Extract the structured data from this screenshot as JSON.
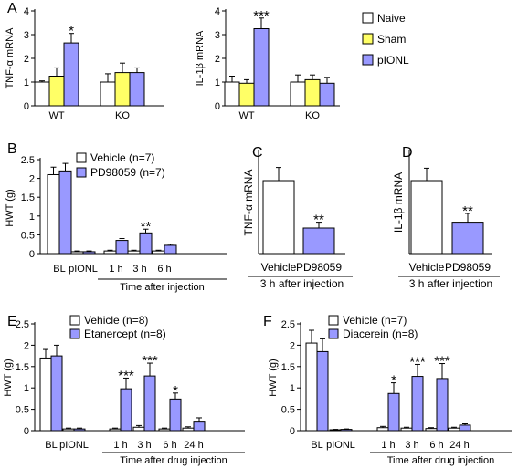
{
  "colors": {
    "naive": "#ffffff",
    "sham": "#ffff66",
    "pionl": "#9999ff",
    "vehicle": "#ffffff",
    "drug": "#9999ff",
    "stroke": "#000000"
  },
  "chart_data": [
    {
      "panel": "A",
      "type": "bar",
      "ylabel": "TNF-α mRNA",
      "ylim": [
        0,
        4
      ],
      "yticks": [
        "0",
        "1",
        "2",
        "3",
        "4"
      ],
      "groups": [
        "WT",
        "KO"
      ],
      "series": [
        {
          "name": "Naive",
          "values": [
            1.0,
            1.0
          ],
          "errors": [
            0.05,
            0.35
          ]
        },
        {
          "name": "Sham",
          "values": [
            1.25,
            1.4
          ],
          "errors": [
            0.35,
            0.4
          ]
        },
        {
          "name": "pIONL",
          "values": [
            2.65,
            1.4
          ],
          "errors": [
            0.4,
            0.2
          ]
        }
      ],
      "annotations": [
        {
          "group": "WT",
          "series": "pIONL",
          "text": "*"
        }
      ]
    },
    {
      "panel": "",
      "type": "bar",
      "ylabel": "IL-1β mRNA",
      "ylim": [
        0,
        4
      ],
      "yticks": [
        "0",
        "1",
        "2",
        "3",
        "4"
      ],
      "groups": [
        "WT",
        "KO"
      ],
      "series": [
        {
          "name": "Naive",
          "values": [
            1.0,
            1.0
          ],
          "errors": [
            0.25,
            0.3
          ]
        },
        {
          "name": "Sham",
          "values": [
            0.95,
            1.1
          ],
          "errors": [
            0.15,
            0.2
          ]
        },
        {
          "name": "pIONL",
          "values": [
            3.25,
            0.95
          ],
          "errors": [
            0.45,
            0.25
          ]
        }
      ],
      "annotations": [
        {
          "group": "WT",
          "series": "pIONL",
          "text": "***"
        }
      ],
      "legend": [
        "Naive",
        "Sham",
        "pIONL"
      ]
    },
    {
      "panel": "B",
      "type": "bar",
      "ylabel": "HWT (g)",
      "ylim": [
        0,
        2.5
      ],
      "yticks": [
        "0",
        "0.5",
        "1",
        "1.5",
        "2",
        "2.5"
      ],
      "groups": [
        "BL",
        "pIONL",
        "1 h",
        "3 h",
        "6 h"
      ],
      "xlabel": "Time after injection",
      "series": [
        {
          "name": "Vehicle (n=7)",
          "values": [
            2.1,
            0.05,
            0.07,
            0.07,
            0.07
          ],
          "errors": [
            0.2,
            0.02,
            0.02,
            0.02,
            0.02
          ]
        },
        {
          "name": "PD98059 (n=7)",
          "values": [
            2.2,
            0.05,
            0.35,
            0.55,
            0.22
          ],
          "errors": [
            0.2,
            0.02,
            0.05,
            0.1,
            0.03
          ]
        }
      ],
      "annotations": [
        {
          "group": "3 h",
          "series": "PD98059 (n=7)",
          "text": "**"
        }
      ]
    },
    {
      "panel": "C",
      "type": "bar",
      "ylabel": "TNF-α mRNA",
      "ylim": [
        0,
        1.4
      ],
      "yticks": [],
      "groups": [
        "Vehicle",
        "PD98059"
      ],
      "xlabel": "3 h after injection",
      "values": [
        1.0,
        0.35
      ],
      "errors": [
        0.18,
        0.08
      ],
      "annotations": [
        {
          "group": "PD98059",
          "text": "**"
        }
      ]
    },
    {
      "panel": "D",
      "type": "bar",
      "ylabel": "IL-1β mRNA",
      "ylim": [
        0,
        1.4
      ],
      "yticks": [],
      "groups": [
        "Vehicle",
        "PD98059"
      ],
      "xlabel": "3 h after injection",
      "values": [
        1.0,
        0.43
      ],
      "errors": [
        0.17,
        0.12
      ],
      "annotations": [
        {
          "group": "PD98059",
          "text": "**"
        }
      ]
    },
    {
      "panel": "E",
      "type": "bar",
      "ylabel": "HWT (g)",
      "ylim": [
        0,
        2.5
      ],
      "yticks": [
        "0",
        "0.5",
        "1",
        "1.5",
        "2",
        "2.5"
      ],
      "groups": [
        "BL",
        "pIONL",
        "1 h",
        "3 h",
        "6 h",
        "24 h"
      ],
      "xlabel": "Time after drug injection",
      "series": [
        {
          "name": "Vehicle (n=8)",
          "values": [
            1.7,
            0.04,
            0.04,
            0.08,
            0.04,
            0.06
          ],
          "errors": [
            0.2,
            0.02,
            0.02,
            0.04,
            0.02,
            0.03
          ]
        },
        {
          "name": "Etanercept (n=8)",
          "values": [
            1.75,
            0.04,
            0.98,
            1.28,
            0.74,
            0.2
          ],
          "errors": [
            0.25,
            0.02,
            0.25,
            0.3,
            0.14,
            0.1
          ]
        }
      ],
      "annotations": [
        {
          "group": "1 h",
          "series": "Etanercept (n=8)",
          "text": "***"
        },
        {
          "group": "3 h",
          "series": "Etanercept (n=8)",
          "text": "***"
        },
        {
          "group": "6 h",
          "series": "Etanercept (n=8)",
          "text": "*"
        }
      ]
    },
    {
      "panel": "F",
      "type": "bar",
      "ylabel": "HWT (g)",
      "ylim": [
        0,
        2.5
      ],
      "yticks": [
        "0",
        "0.5",
        "1",
        "1.5",
        "2",
        "2.5"
      ],
      "groups": [
        "BL",
        "pIONL",
        "1 h",
        "3 h",
        "6 h",
        "24 h"
      ],
      "xlabel": "Time after drug injection",
      "series": [
        {
          "name": "Vehicle (n=7)",
          "values": [
            2.05,
            0.02,
            0.07,
            0.06,
            0.05,
            0.06
          ],
          "errors": [
            0.3,
            0.01,
            0.03,
            0.02,
            0.02,
            0.02
          ]
        },
        {
          "name": "Diacerein (n=8)",
          "values": [
            1.85,
            0.03,
            0.87,
            1.27,
            1.22,
            0.13
          ],
          "errors": [
            0.3,
            0.01,
            0.25,
            0.28,
            0.35,
            0.03
          ]
        }
      ],
      "annotations": [
        {
          "group": "1 h",
          "series": "Diacerein (n=8)",
          "text": "*"
        },
        {
          "group": "3 h",
          "series": "Diacerein (n=8)",
          "text": "***"
        },
        {
          "group": "6 h",
          "series": "Diacerein (n=8)",
          "text": "***"
        }
      ]
    }
  ]
}
